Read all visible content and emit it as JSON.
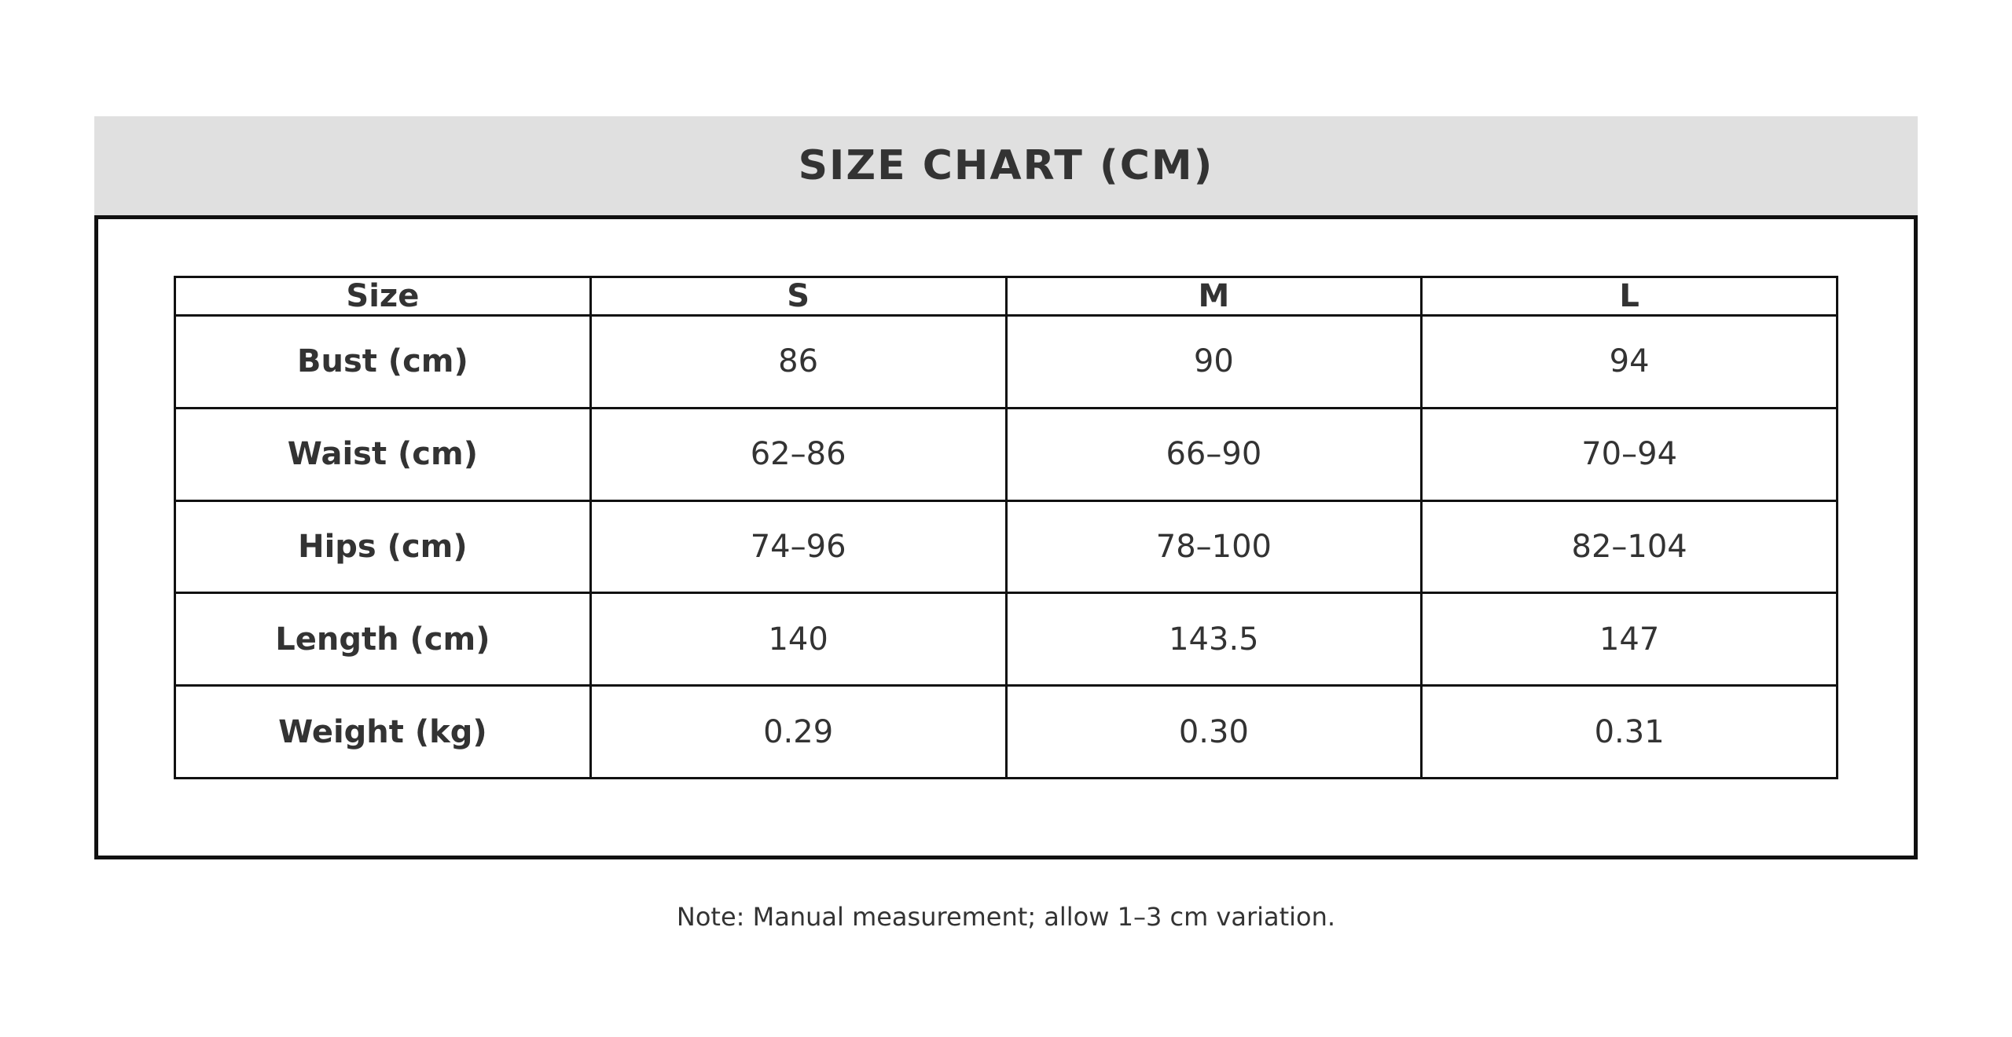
{
  "chart_data": {
    "type": "table",
    "title": "SIZE CHART (CM)",
    "columns": [
      "Size",
      "S",
      "M",
      "L"
    ],
    "rows": [
      {
        "label": "Bust (cm)",
        "values": [
          "86",
          "90",
          "94"
        ]
      },
      {
        "label": "Waist (cm)",
        "values": [
          "62–86",
          "66–90",
          "70–94"
        ]
      },
      {
        "label": "Hips (cm)",
        "values": [
          "74–96",
          "78–100",
          "82–104"
        ]
      },
      {
        "label": "Length (cm)",
        "values": [
          "140",
          "143.5",
          "147"
        ]
      },
      {
        "label": "Weight (kg)",
        "values": [
          "0.29",
          "0.30",
          "0.31"
        ]
      }
    ],
    "note": "Note: Manual measurement; allow 1–3 cm variation.",
    "layout": {
      "legend": "none",
      "grid": "table-borders",
      "title_position": "top-banner"
    }
  },
  "colors": {
    "page_bg": "#ffffff",
    "band_bg": "#e0e0e0",
    "text": "#333333",
    "border": "#111111"
  }
}
